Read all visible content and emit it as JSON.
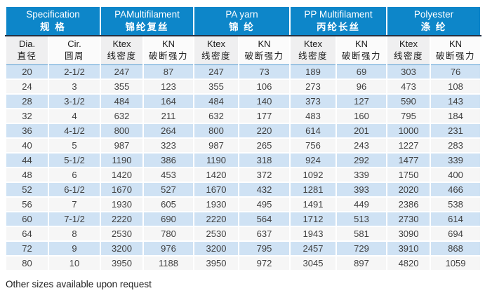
{
  "table": {
    "header_groups": [
      {
        "en": "Specification",
        "zh": "规 格"
      },
      {
        "en": "PAMultifilament",
        "zh": "锦纶复丝"
      },
      {
        "en": "PA yarn",
        "zh": "锦 纶"
      },
      {
        "en": "PP Multifilament",
        "zh": "丙纶长丝"
      },
      {
        "en": "Polyester",
        "zh": "涤 纶"
      }
    ],
    "columns": [
      {
        "en": "Dia.",
        "zh": "直径"
      },
      {
        "en": "Cir.",
        "zh": "圆周"
      },
      {
        "en": "Ktex",
        "zh": "线密度"
      },
      {
        "en": "KN",
        "zh": "破断强力"
      },
      {
        "en": "Ktex",
        "zh": "线密度"
      },
      {
        "en": "KN",
        "zh": "破断强力"
      },
      {
        "en": "Ktex",
        "zh": "线密度"
      },
      {
        "en": "KN",
        "zh": "破断强力"
      },
      {
        "en": "Ktex",
        "zh": "线密度"
      },
      {
        "en": "KN",
        "zh": "破断强力"
      }
    ],
    "rows": [
      [
        "20",
        "2-1/2",
        "247",
        "87",
        "247",
        "73",
        "189",
        "69",
        "303",
        "76"
      ],
      [
        "24",
        "3",
        "355",
        "123",
        "355",
        "106",
        "273",
        "96",
        "473",
        "108"
      ],
      [
        "28",
        "3-1/2",
        "484",
        "164",
        "484",
        "140",
        "373",
        "127",
        "590",
        "143"
      ],
      [
        "32",
        "4",
        "632",
        "211",
        "632",
        "177",
        "483",
        "160",
        "795",
        "184"
      ],
      [
        "36",
        "4-1/2",
        "800",
        "264",
        "800",
        "220",
        "614",
        "201",
        "1000",
        "231"
      ],
      [
        "40",
        "5",
        "987",
        "323",
        "987",
        "265",
        "756",
        "243",
        "1227",
        "283"
      ],
      [
        "44",
        "5-1/2",
        "1190",
        "386",
        "1190",
        "318",
        "924",
        "292",
        "1477",
        "339"
      ],
      [
        "48",
        "6",
        "1420",
        "453",
        "1420",
        "372",
        "1092",
        "339",
        "1750",
        "400"
      ],
      [
        "52",
        "6-1/2",
        "1670",
        "527",
        "1670",
        "432",
        "1281",
        "393",
        "2020",
        "466"
      ],
      [
        "56",
        "7",
        "1930",
        "605",
        "1930",
        "495",
        "1491",
        "449",
        "2386",
        "538"
      ],
      [
        "60",
        "7-1/2",
        "2220",
        "690",
        "2220",
        "564",
        "1712",
        "513",
        "2730",
        "614"
      ],
      [
        "64",
        "8",
        "2530",
        "780",
        "2530",
        "637",
        "1943",
        "581",
        "3090",
        "694"
      ],
      [
        "72",
        "9",
        "3200",
        "976",
        "3200",
        "795",
        "2457",
        "729",
        "3910",
        "868"
      ],
      [
        "80",
        "10",
        "3950",
        "1188",
        "3950",
        "972",
        "3045",
        "897",
        "4820",
        "1059"
      ]
    ]
  },
  "footer": {
    "note": "Other sizes available upon request"
  },
  "colors": {
    "header_bg": "#0d86c9",
    "header_text": "#ffffff",
    "dark_divider": "#233043",
    "thin_blue_line": "#4f9ad3",
    "row_stripe_blue": "#cfe2f4",
    "row_stripe_gray": "#f6f6f6",
    "subheader_gray": "#efeff0",
    "data_text": "#404040"
  }
}
